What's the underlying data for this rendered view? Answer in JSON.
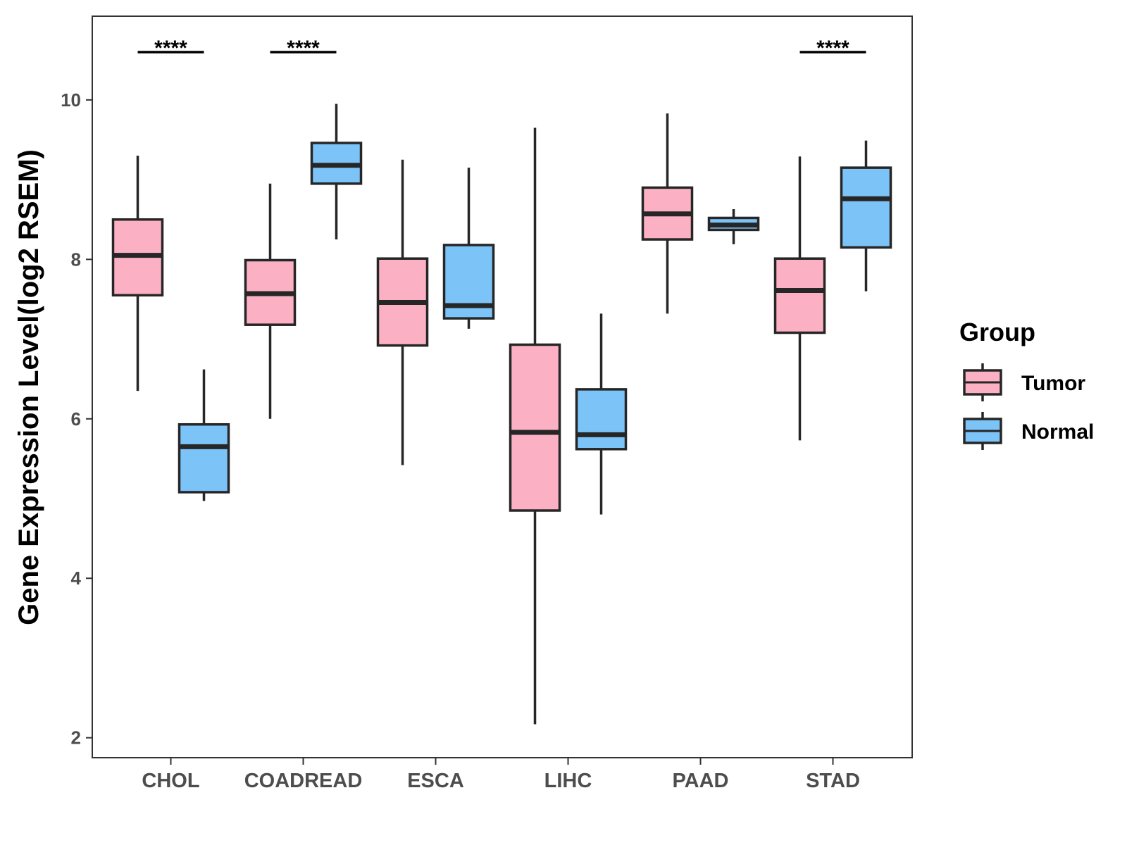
{
  "chart_data": {
    "type": "boxplot",
    "title": "",
    "xlabel": "",
    "ylabel": "Gene Expression Level(log2 RSEM)",
    "ylim": [
      1.75,
      11.05
    ],
    "yticks": [
      2,
      4,
      6,
      8,
      10
    ],
    "categories": [
      "CHOL",
      "COADREAD",
      "ESCA",
      "LIHC",
      "PAAD",
      "STAD"
    ],
    "legend": {
      "title": "Group",
      "position": "right",
      "entries": [
        "Tumor",
        "Normal"
      ]
    },
    "series": [
      {
        "name": "Tumor",
        "color": "#FBB1C3",
        "boxes": [
          {
            "min": 6.35,
            "q1": 7.55,
            "median": 8.05,
            "q3": 8.5,
            "max": 9.3
          },
          {
            "min": 6.0,
            "q1": 7.18,
            "median": 7.57,
            "q3": 7.99,
            "max": 8.95
          },
          {
            "min": 5.42,
            "q1": 6.92,
            "median": 7.46,
            "q3": 8.01,
            "max": 9.25
          },
          {
            "min": 2.17,
            "q1": 4.85,
            "median": 5.83,
            "q3": 6.93,
            "max": 9.65
          },
          {
            "min": 7.32,
            "q1": 8.25,
            "median": 8.57,
            "q3": 8.9,
            "max": 9.83
          },
          {
            "min": 5.73,
            "q1": 7.08,
            "median": 7.61,
            "q3": 8.01,
            "max": 9.29
          }
        ]
      },
      {
        "name": "Normal",
        "color": "#7CC3F8",
        "boxes": [
          {
            "min": 4.97,
            "q1": 5.08,
            "median": 5.65,
            "q3": 5.93,
            "max": 6.62
          },
          {
            "min": 8.25,
            "q1": 8.95,
            "median": 9.18,
            "q3": 9.46,
            "max": 9.95
          },
          {
            "min": 7.13,
            "q1": 7.26,
            "median": 7.42,
            "q3": 8.18,
            "max": 9.15
          },
          {
            "min": 4.8,
            "q1": 5.62,
            "median": 5.8,
            "q3": 6.37,
            "max": 7.32
          },
          {
            "min": 8.19,
            "q1": 8.37,
            "median": 8.43,
            "q3": 8.52,
            "max": 8.63
          },
          {
            "min": 7.6,
            "q1": 8.15,
            "median": 8.76,
            "q3": 9.15,
            "max": 9.49
          }
        ]
      }
    ],
    "significance": [
      {
        "category": "CHOL",
        "label": "****"
      },
      {
        "category": "COADREAD",
        "label": "****"
      },
      {
        "category": "STAD",
        "label": "****"
      }
    ]
  }
}
